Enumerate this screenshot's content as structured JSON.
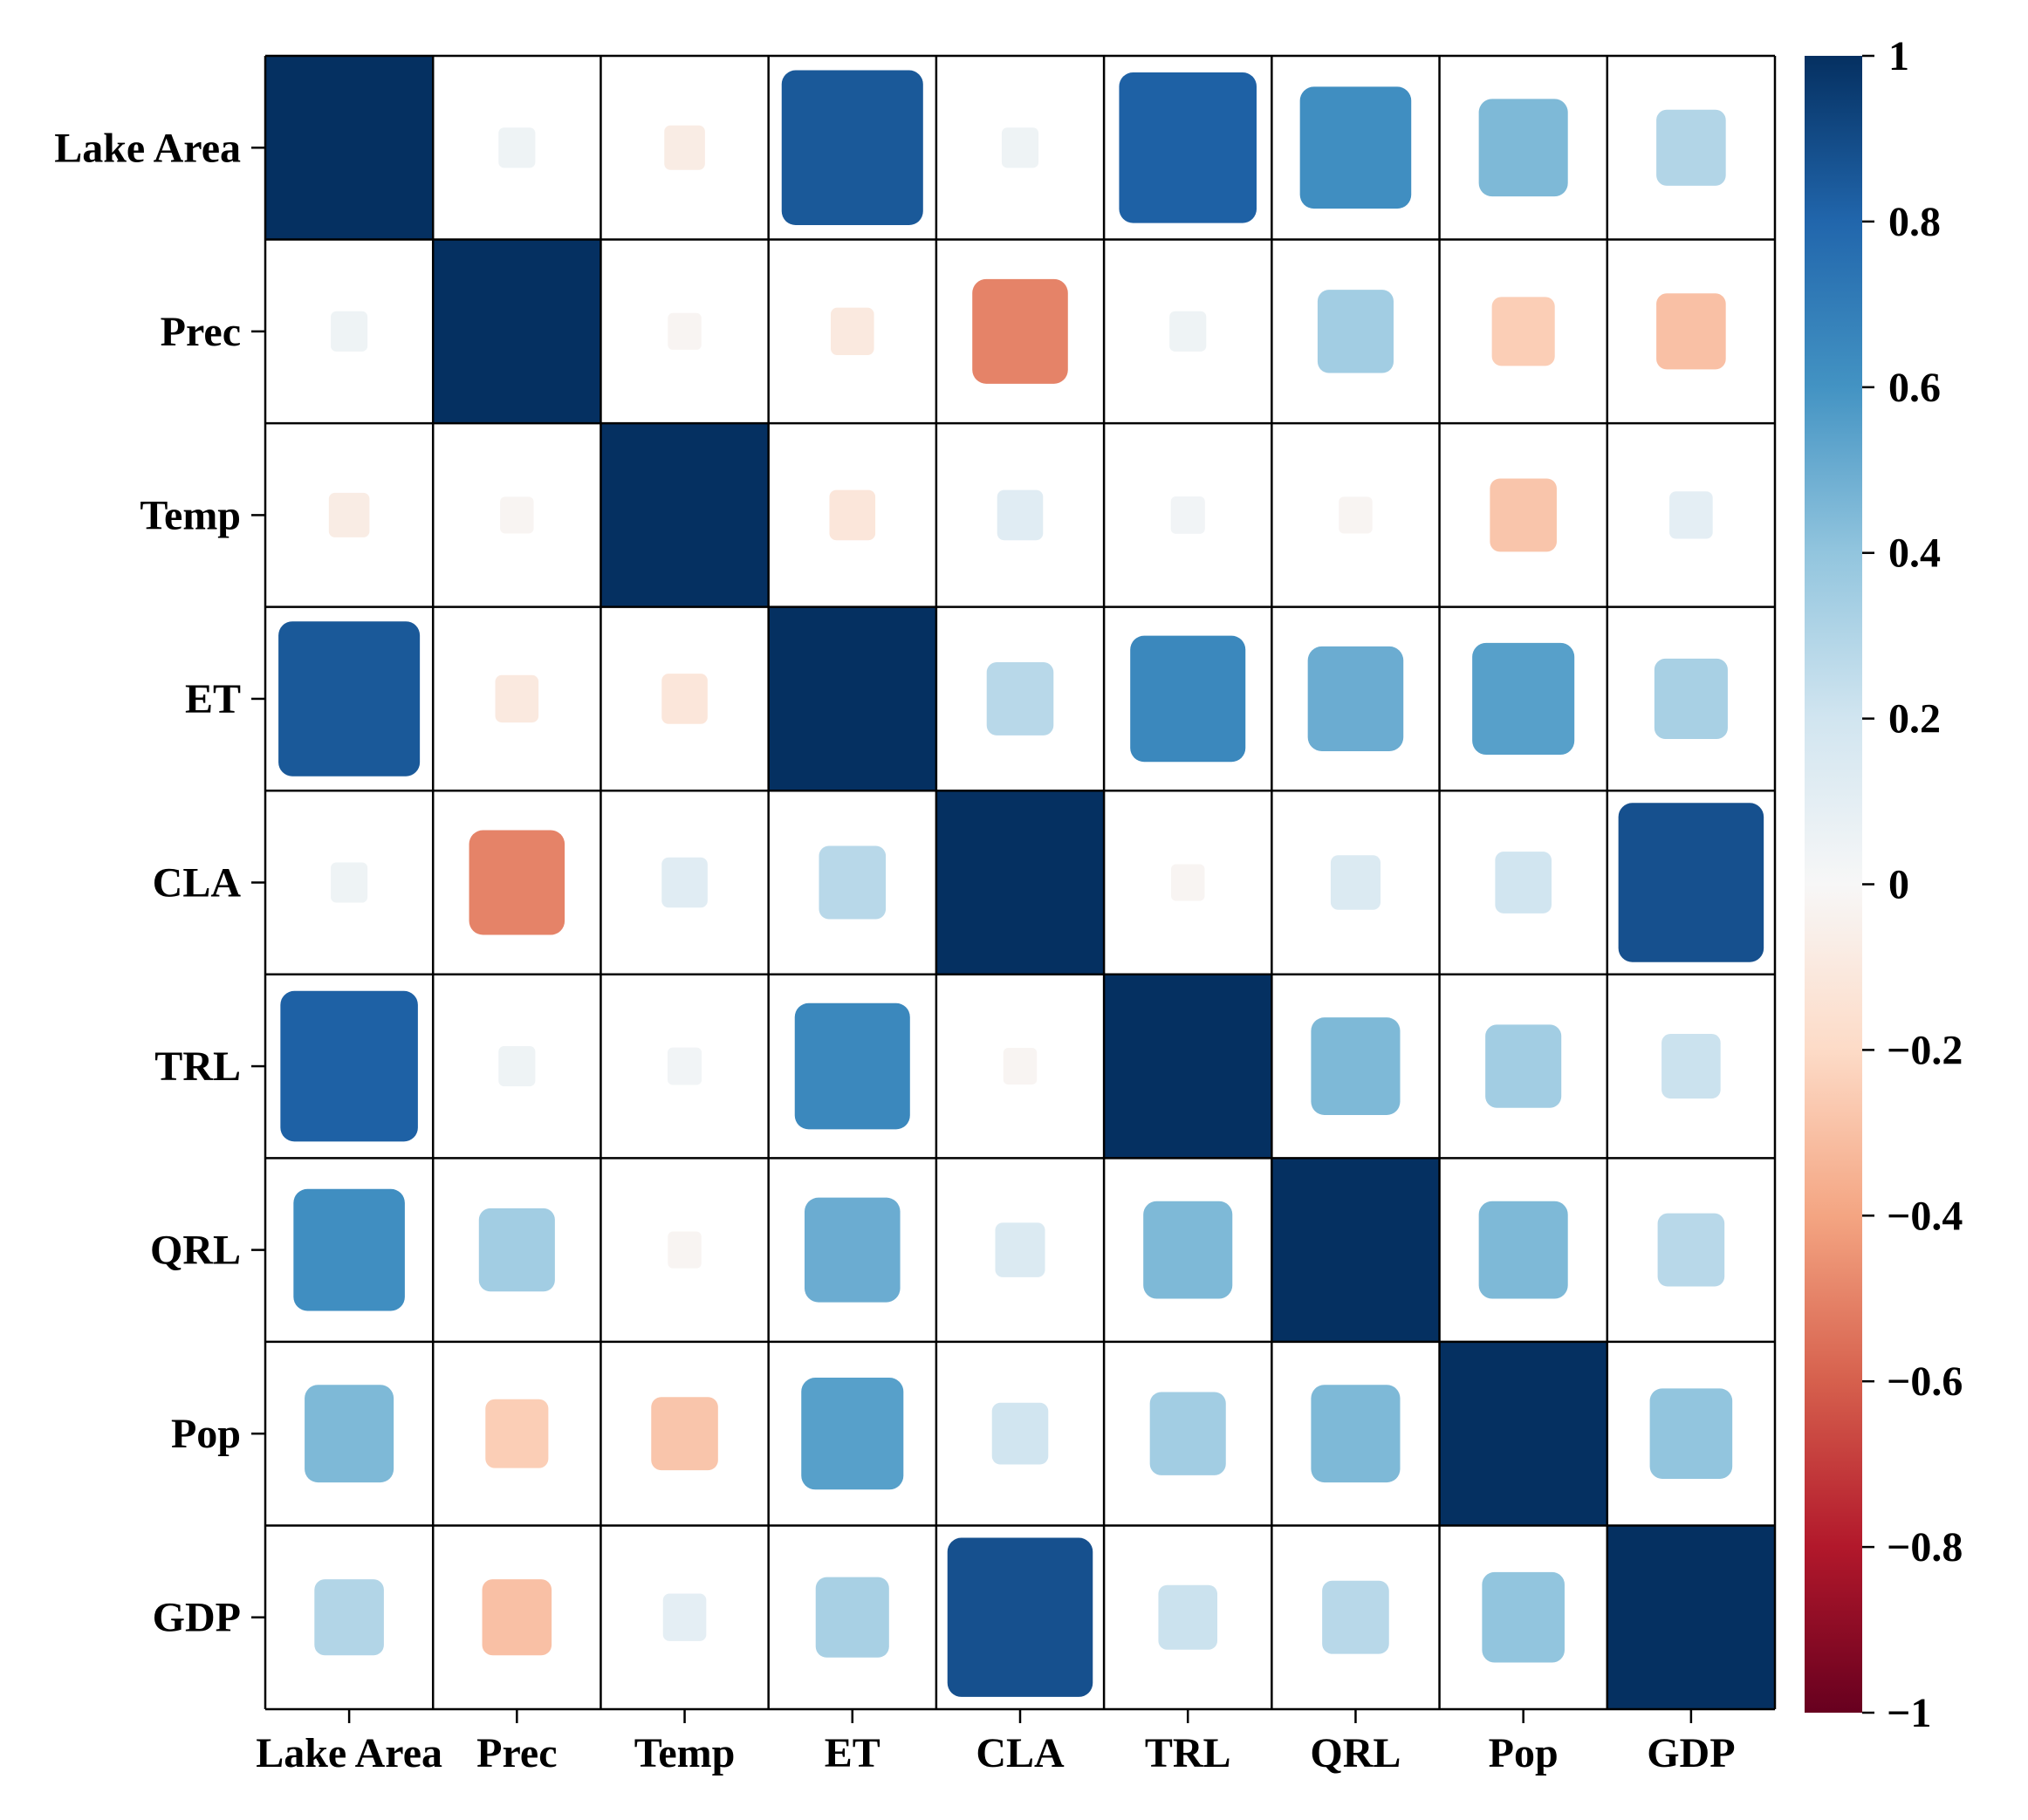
{
  "chart_data": {
    "type": "heatmap",
    "title": "",
    "variables": [
      "Lake Area",
      "Prec",
      "Temp",
      "ET",
      "CLA",
      "TRL",
      "QRL",
      "Pop",
      "GDP"
    ],
    "matrix": [
      [
        1.0,
        0.05,
        -0.08,
        0.85,
        0.05,
        0.82,
        0.62,
        0.45,
        0.3
      ],
      [
        0.05,
        1.0,
        -0.02,
        -0.1,
        -0.5,
        0.05,
        0.35,
        -0.25,
        -0.3
      ],
      [
        -0.08,
        -0.02,
        1.0,
        -0.12,
        0.12,
        0.03,
        -0.02,
        -0.28,
        0.1
      ],
      [
        0.85,
        -0.1,
        -0.12,
        1.0,
        0.28,
        0.65,
        0.5,
        0.55,
        0.33
      ],
      [
        0.05,
        -0.5,
        0.12,
        0.28,
        1.0,
        -0.02,
        0.15,
        0.2,
        0.88
      ],
      [
        0.82,
        0.05,
        0.03,
        0.65,
        -0.02,
        1.0,
        0.45,
        0.35,
        0.22
      ],
      [
        0.62,
        0.35,
        -0.02,
        0.5,
        0.15,
        0.45,
        1.0,
        0.45,
        0.28
      ],
      [
        0.45,
        -0.25,
        -0.28,
        0.55,
        0.2,
        0.35,
        0.45,
        1.0,
        0.4
      ],
      [
        0.3,
        -0.3,
        0.1,
        0.33,
        0.88,
        0.22,
        0.28,
        0.4,
        1.0
      ]
    ],
    "colorbar": {
      "range": [
        -1,
        1
      ],
      "ticks": [
        1,
        0.8,
        0.6,
        0.4,
        0.2,
        0,
        -0.2,
        -0.4,
        -0.6,
        -0.8,
        -1
      ],
      "tick_labels": [
        "1",
        "0.8",
        "0.6",
        "0.4",
        "0.2",
        "0",
        "−0.2",
        "−0.4",
        "−0.6",
        "−0.8",
        "−1"
      ],
      "colormap": "RdBu",
      "stops": [
        "#67001f",
        "#b2182b",
        "#d6604d",
        "#f4a582",
        "#fddbc7",
        "#f7f7f7",
        "#d1e5f0",
        "#92c5de",
        "#4393c3",
        "#2166ac",
        "#053061"
      ]
    },
    "grid": true,
    "legend": "right"
  }
}
